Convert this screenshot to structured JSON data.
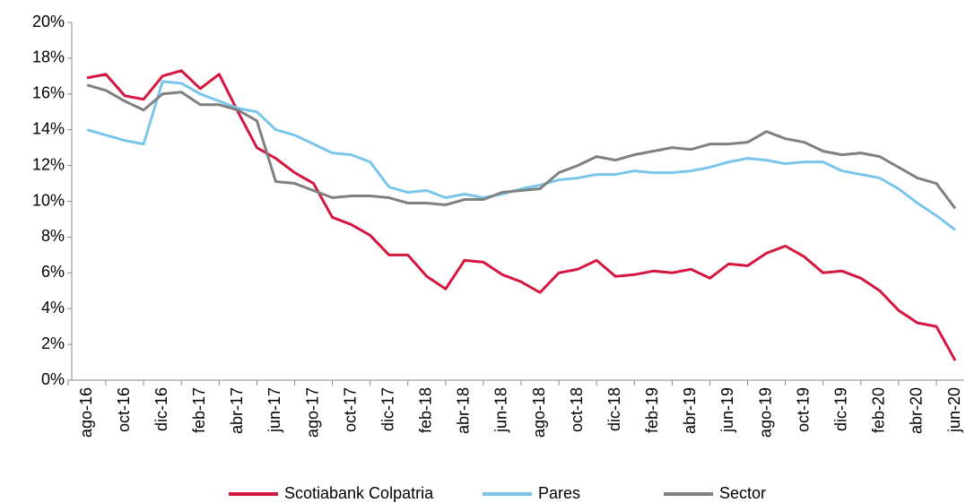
{
  "chart_data": {
    "type": "line",
    "categories": [
      "ago-16",
      null,
      "oct-16",
      null,
      "dic-16",
      null,
      "feb-17",
      null,
      "abr-17",
      null,
      "jun-17",
      null,
      "ago-17",
      null,
      "oct-17",
      null,
      "dic-17",
      null,
      "feb-18",
      null,
      "abr-18",
      null,
      "jun-18",
      null,
      "ago-18",
      null,
      "oct-18",
      null,
      "dic-18",
      null,
      "feb-19",
      null,
      "abr-19",
      null,
      "jun-19",
      null,
      "ago-19",
      null,
      "oct-19",
      null,
      "dic-19",
      null,
      "feb-20",
      null,
      "abr-20",
      null,
      "jun-20"
    ],
    "series": [
      {
        "name": "Scotiabank Colpatria",
        "color": "#d5163f",
        "values": [
          16.9,
          17.1,
          15.9,
          15.7,
          17.0,
          17.3,
          16.3,
          17.1,
          15.0,
          13.0,
          12.4,
          11.6,
          11.0,
          9.1,
          8.7,
          8.1,
          7.0,
          7.0,
          5.8,
          5.1,
          6.7,
          6.6,
          5.9,
          5.5,
          4.9,
          6.0,
          6.2,
          6.7,
          5.8,
          5.9,
          6.1,
          6.0,
          6.2,
          5.7,
          6.5,
          6.4,
          7.1,
          7.5,
          6.9,
          6.0,
          6.1,
          5.7,
          5.0,
          3.9,
          3.2,
          3.0,
          1.1
        ]
      },
      {
        "name": "Pares",
        "color": "#7ac6ea",
        "values": [
          14.0,
          13.7,
          13.4,
          13.2,
          16.7,
          16.6,
          16.0,
          15.6,
          15.2,
          15.0,
          14.0,
          13.7,
          13.2,
          12.7,
          12.6,
          12.2,
          10.8,
          10.5,
          10.6,
          10.2,
          10.4,
          10.2,
          10.4,
          10.7,
          10.9,
          11.2,
          11.3,
          11.5,
          11.5,
          11.7,
          11.6,
          11.6,
          11.7,
          11.9,
          12.2,
          12.4,
          12.3,
          12.1,
          12.2,
          12.2,
          11.7,
          11.5,
          11.3,
          10.7,
          9.9,
          9.2,
          8.4
        ]
      },
      {
        "name": "Sector",
        "color": "#808080",
        "values": [
          16.5,
          16.2,
          15.6,
          15.1,
          16.0,
          16.1,
          15.4,
          15.4,
          15.1,
          14.5,
          11.1,
          11.0,
          10.6,
          10.2,
          10.3,
          10.3,
          10.2,
          9.9,
          9.9,
          9.8,
          10.1,
          10.1,
          10.5,
          10.6,
          10.7,
          11.6,
          12.0,
          12.5,
          12.3,
          12.6,
          12.8,
          13.0,
          12.9,
          13.2,
          13.2,
          13.3,
          13.9,
          13.5,
          13.3,
          12.8,
          12.6,
          12.7,
          12.5,
          11.9,
          11.3,
          11.0,
          9.6
        ]
      }
    ],
    "ylim": [
      0,
      20
    ],
    "yticks": [
      {
        "value": 0,
        "label": "0%"
      },
      {
        "value": 2,
        "label": "2%"
      },
      {
        "value": 4,
        "label": "4%"
      },
      {
        "value": 6,
        "label": "6%"
      },
      {
        "value": 8,
        "label": "8%"
      },
      {
        "value": 10,
        "label": "10%"
      },
      {
        "value": 12,
        "label": "12%"
      },
      {
        "value": 14,
        "label": "14%"
      },
      {
        "value": 16,
        "label": "16%"
      },
      {
        "value": 18,
        "label": "18%"
      },
      {
        "value": 20,
        "label": "20%"
      }
    ],
    "grid": false,
    "legend": "bottom"
  }
}
